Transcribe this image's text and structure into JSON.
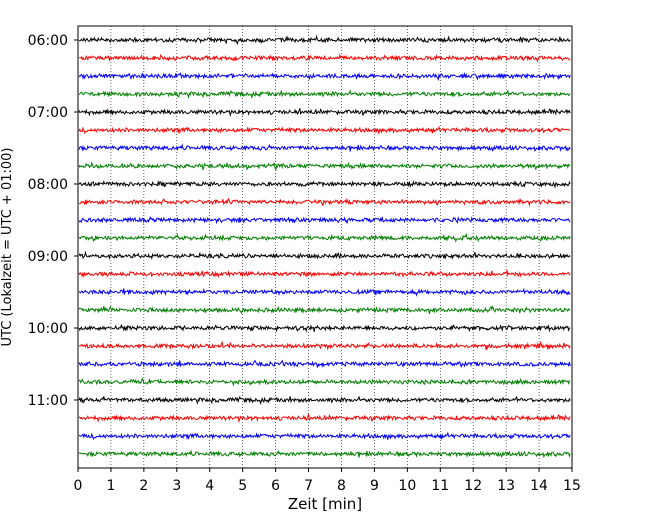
{
  "chart_data": {
    "type": "line",
    "title": "",
    "xlabel": "Zeit  [min]",
    "ylabel": "UTC (Lokalzeit = UTC + 01:00)",
    "xlim": [
      0,
      15
    ],
    "x_ticks": [
      "0",
      "1",
      "2",
      "3",
      "4",
      "5",
      "6",
      "7",
      "8",
      "9",
      "10",
      "11",
      "12",
      "13",
      "14",
      "15"
    ],
    "y_tick_labels": [
      "06:00",
      "07:00",
      "08:00",
      "09:00",
      "10:00",
      "11:00"
    ],
    "grid": "vertical dotted",
    "legend": "none",
    "trace_interval_min": 15,
    "trace_colors": [
      "#000000",
      "#ff0000",
      "#0000ff",
      "#008000"
    ],
    "traces": [
      {
        "start": "06:00",
        "color": "#000000"
      },
      {
        "start": "06:15",
        "color": "#ff0000"
      },
      {
        "start": "06:30",
        "color": "#0000ff"
      },
      {
        "start": "06:45",
        "color": "#008000"
      },
      {
        "start": "07:00",
        "color": "#000000"
      },
      {
        "start": "07:15",
        "color": "#ff0000"
      },
      {
        "start": "07:30",
        "color": "#0000ff"
      },
      {
        "start": "07:45",
        "color": "#008000"
      },
      {
        "start": "08:00",
        "color": "#000000"
      },
      {
        "start": "08:15",
        "color": "#ff0000"
      },
      {
        "start": "08:30",
        "color": "#0000ff"
      },
      {
        "start": "08:45",
        "color": "#008000"
      },
      {
        "start": "09:00",
        "color": "#000000"
      },
      {
        "start": "09:15",
        "color": "#ff0000"
      },
      {
        "start": "09:30",
        "color": "#0000ff"
      },
      {
        "start": "09:45",
        "color": "#008000"
      },
      {
        "start": "10:00",
        "color": "#000000"
      },
      {
        "start": "10:15",
        "color": "#ff0000"
      },
      {
        "start": "10:30",
        "color": "#0000ff"
      },
      {
        "start": "10:45",
        "color": "#008000"
      },
      {
        "start": "11:00",
        "color": "#000000"
      },
      {
        "start": "11:15",
        "color": "#ff0000"
      },
      {
        "start": "11:30",
        "color": "#0000ff"
      },
      {
        "start": "11:45",
        "color": "#008000"
      }
    ]
  }
}
